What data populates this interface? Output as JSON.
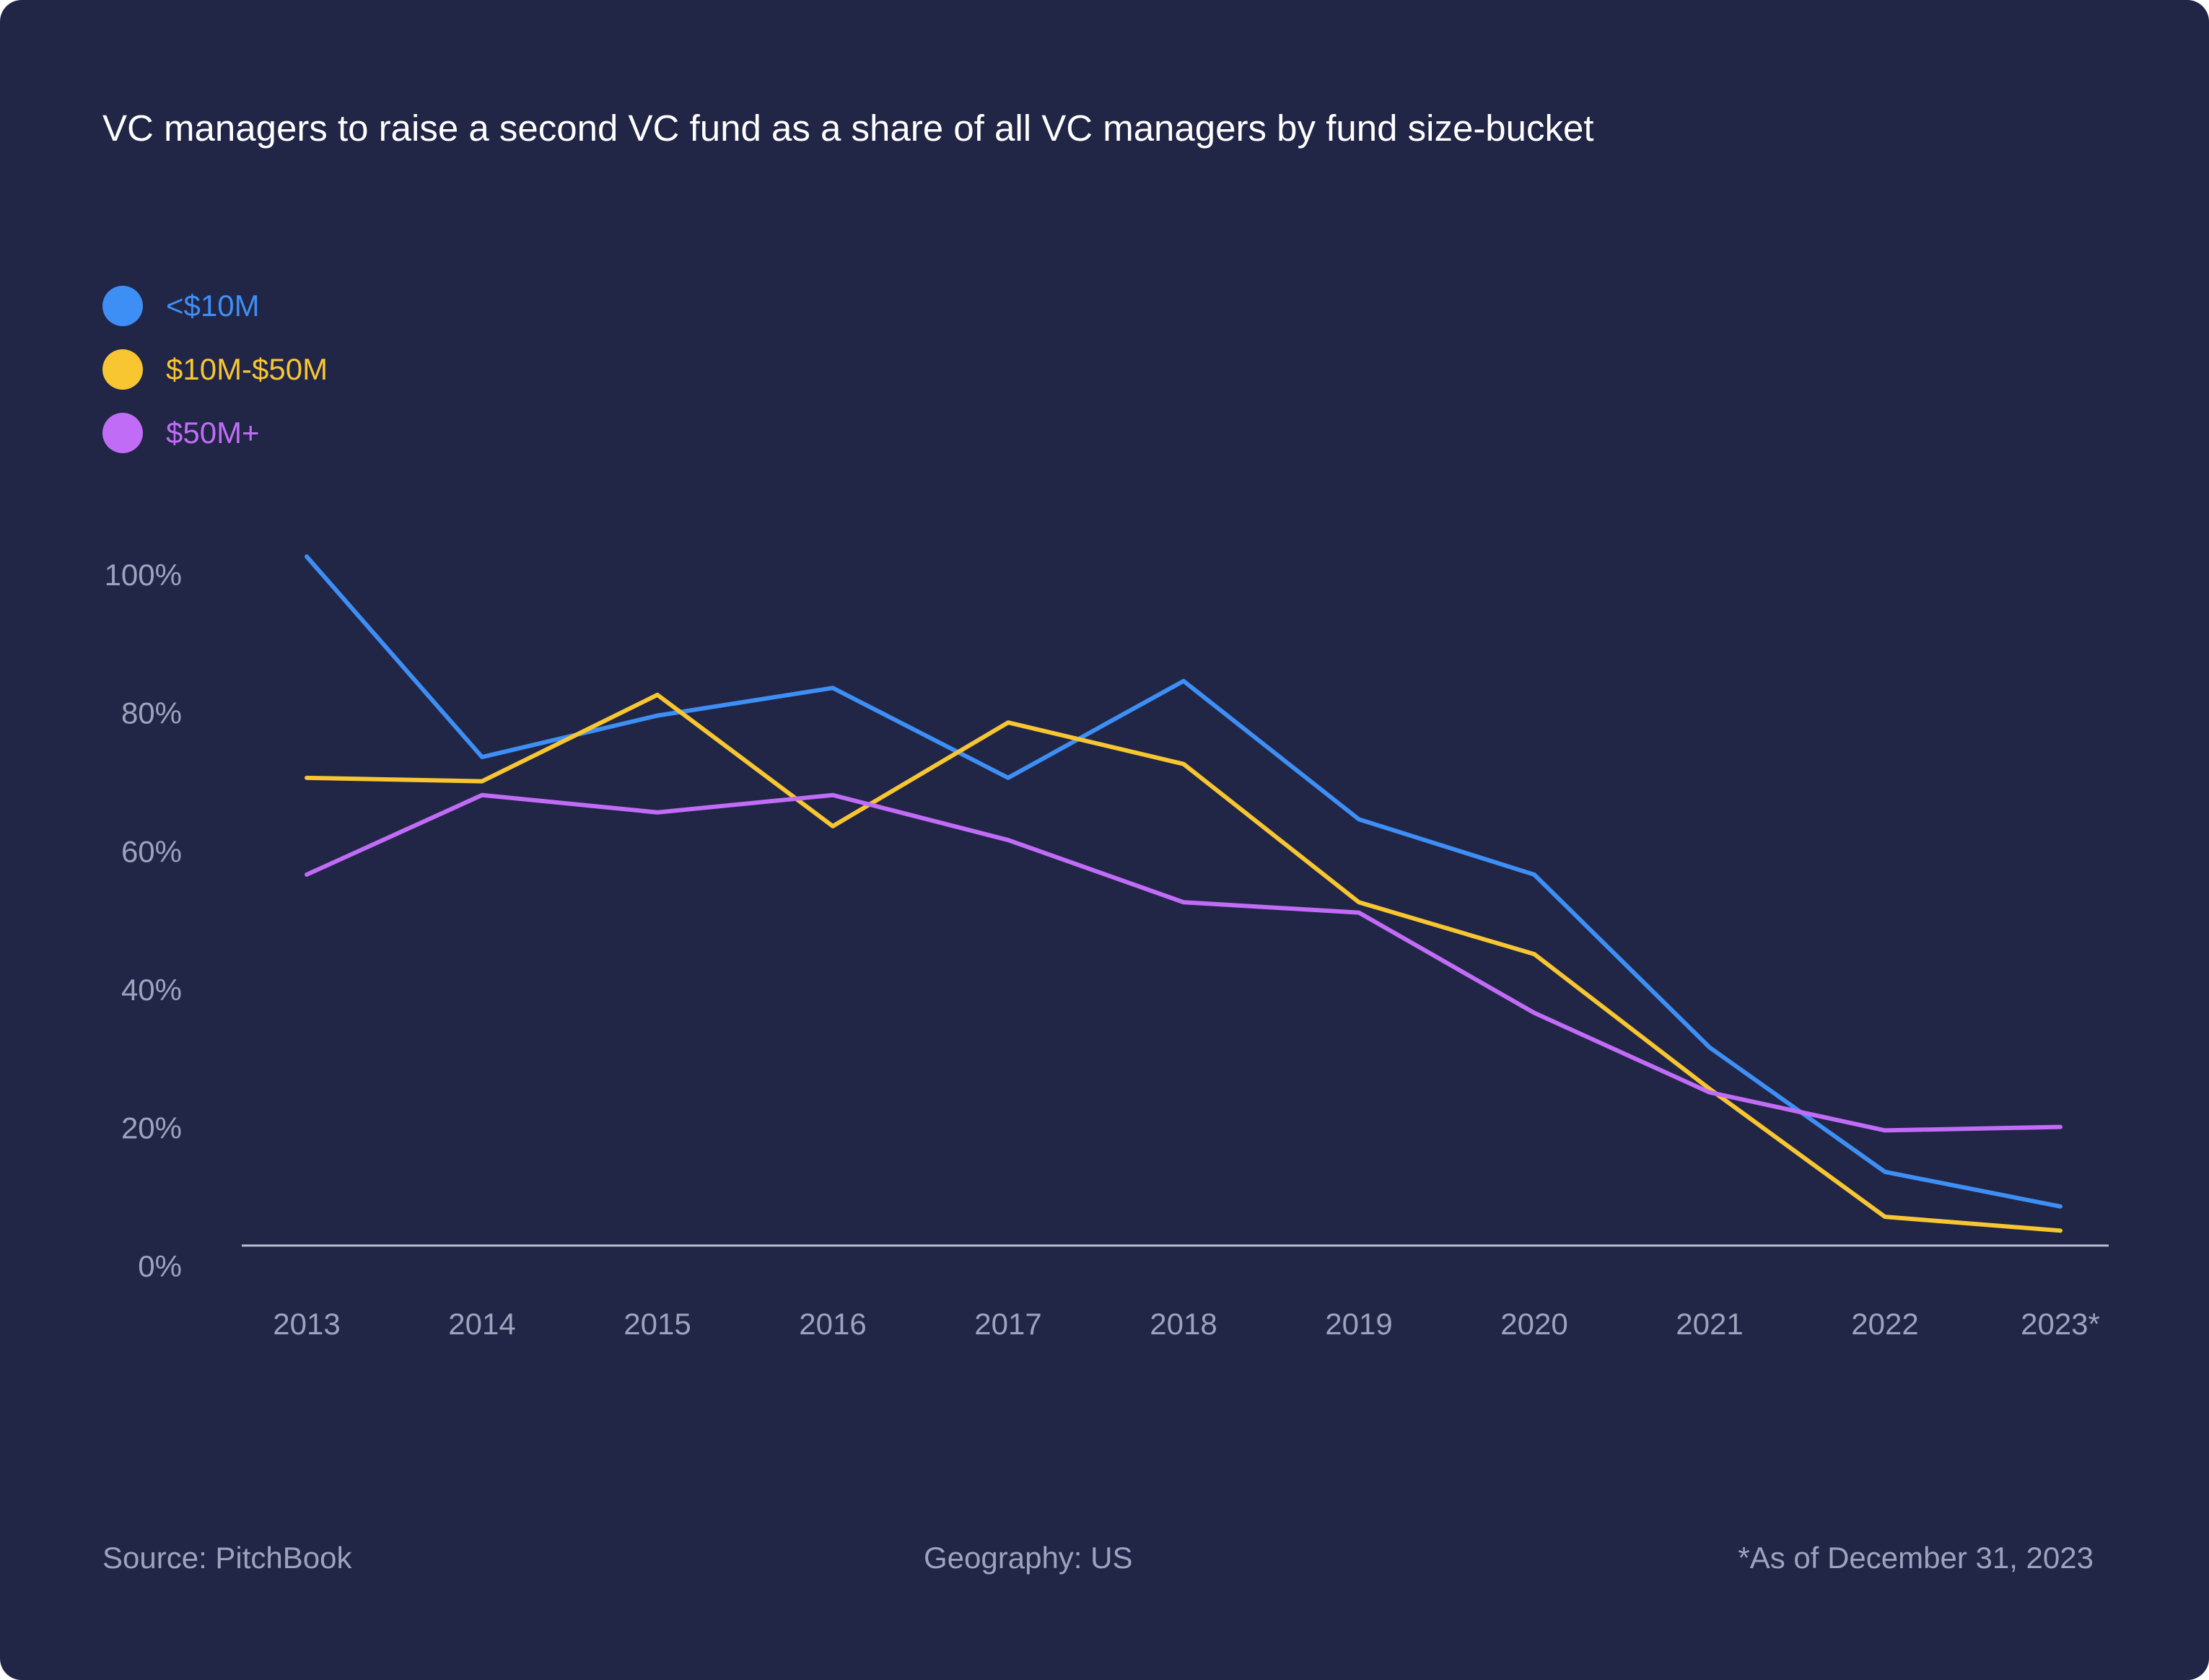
{
  "colors": {
    "background": "#212546",
    "title": "#ffffff",
    "muted": "#9da3bf",
    "axis": "#b9bdd4",
    "series_small": "#3d8ff5",
    "series_mid": "#f7c631",
    "series_large": "#c16cf6"
  },
  "chart_data": {
    "type": "line",
    "title": "VC managers to raise a second VC fund as a share of all VC managers by fund size-bucket",
    "xlabel": "",
    "ylabel": "",
    "categories": [
      "2013",
      "2014",
      "2015",
      "2016",
      "2017",
      "2018",
      "2019",
      "2020",
      "2021",
      "2022",
      "2023*"
    ],
    "y_ticks": [
      "0%",
      "20%",
      "40%",
      "60%",
      "80%",
      "100%"
    ],
    "ylim": [
      0,
      100
    ],
    "grid": false,
    "legend_position": "top-left",
    "series": [
      {
        "name": "<$10M",
        "color": "#3d8ff5",
        "values": [
          103,
          74,
          80,
          84,
          71,
          85,
          65,
          57,
          32,
          14,
          9
        ]
      },
      {
        "name": "$10M-$50M",
        "color": "#f7c631",
        "values": [
          71,
          70.5,
          83,
          64,
          79,
          73,
          53,
          45.5,
          26,
          7.5,
          5.5
        ]
      },
      {
        "name": "$50M+",
        "color": "#c16cf6",
        "values": [
          57,
          68.5,
          66,
          68.5,
          62,
          53,
          51.5,
          37,
          25.5,
          20,
          20.5
        ]
      }
    ]
  },
  "footer": {
    "source": "Source: PitchBook",
    "geography": "Geography: US",
    "note": "*As of December 31, 2023"
  }
}
